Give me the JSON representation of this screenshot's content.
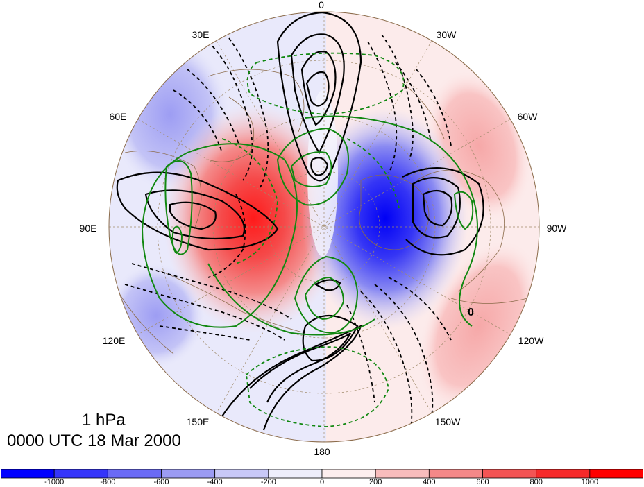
{
  "title": {
    "level": "1 hPa",
    "time": "0000 UTC 18 Mar 2000"
  },
  "longitude_labels": [
    {
      "id": "lon-0",
      "text": "0"
    },
    {
      "id": "lon-30w",
      "text": "30W"
    },
    {
      "id": "lon-60w",
      "text": "60W"
    },
    {
      "id": "lon-90w",
      "text": "90W"
    },
    {
      "id": "lon-120w",
      "text": "120W"
    },
    {
      "id": "lon-150w",
      "text": "150W"
    },
    {
      "id": "lon-180",
      "text": "180"
    },
    {
      "id": "lon-150e",
      "text": "150E"
    },
    {
      "id": "lon-120e",
      "text": "120E"
    },
    {
      "id": "lon-90e",
      "text": "90E"
    },
    {
      "id": "lon-60e",
      "text": "60E"
    },
    {
      "id": "lon-30e",
      "text": "30E"
    }
  ],
  "contour_label": "0",
  "colorbar": {
    "tick_labels": [
      "-1000",
      "-800",
      "-600",
      "-400",
      "-200",
      "0",
      "200",
      "400",
      "600",
      "800",
      "1000"
    ],
    "colors": [
      "#0000ff",
      "#3535fa",
      "#6a6af5",
      "#9b9bf3",
      "#c8c8f7",
      "#eeeefb",
      "#fdeeee",
      "#f8bcbc",
      "#f48888",
      "#f35454",
      "#f62a2a",
      "#ff0000"
    ]
  },
  "colors": {
    "positive_contour": "#000000",
    "negative_contour": "#000000",
    "overlay_contour": "#118811",
    "coastline": "#8b6b4a",
    "graticule": "#a08a6a"
  }
}
